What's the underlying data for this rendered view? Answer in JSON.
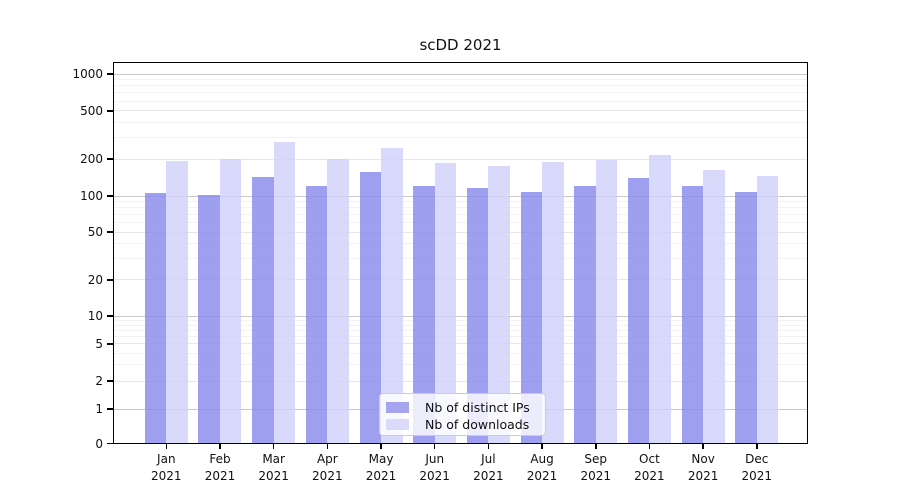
{
  "title": "scDD 2021",
  "chart_data": {
    "type": "bar",
    "title": "scDD 2021",
    "categories": [
      "Jan 2021",
      "Feb 2021",
      "Mar 2021",
      "Apr 2021",
      "May 2021",
      "Jun 2021",
      "Jul 2021",
      "Aug 2021",
      "Sep 2021",
      "Oct 2021",
      "Nov 2021",
      "Dec 2021"
    ],
    "series": [
      {
        "name": "Nb of distinct IPs",
        "values": [
          106,
          102,
          143,
          121,
          156,
          121,
          116,
          108,
          121,
          140,
          121,
          108
        ],
        "color": "rgba(138,138,237,0.82)",
        "legend_color": "#a5a5ef"
      },
      {
        "name": "Nb of downloads",
        "values": [
          193,
          200,
          275,
          200,
          246,
          186,
          176,
          190,
          197,
          215,
          163,
          146
        ],
        "color": "rgba(209,209,251,0.82)",
        "legend_color": "#dbdbf9"
      }
    ],
    "ylabel": "",
    "xlabel": "",
    "yticks": [
      0,
      1,
      2,
      5,
      10,
      20,
      50,
      100,
      200,
      500,
      1000
    ],
    "yscale": "log (with zero baseline)",
    "ylim": [
      0,
      1230
    ],
    "grid": true,
    "legend_position": "lower center"
  },
  "colors": {
    "grid_decade": "#c9c9c9",
    "grid_labeled": "#e7e7e7",
    "grid_minor": "#f3f3f3",
    "axis": "#000000",
    "text": "#111111",
    "background": "#ffffff"
  }
}
